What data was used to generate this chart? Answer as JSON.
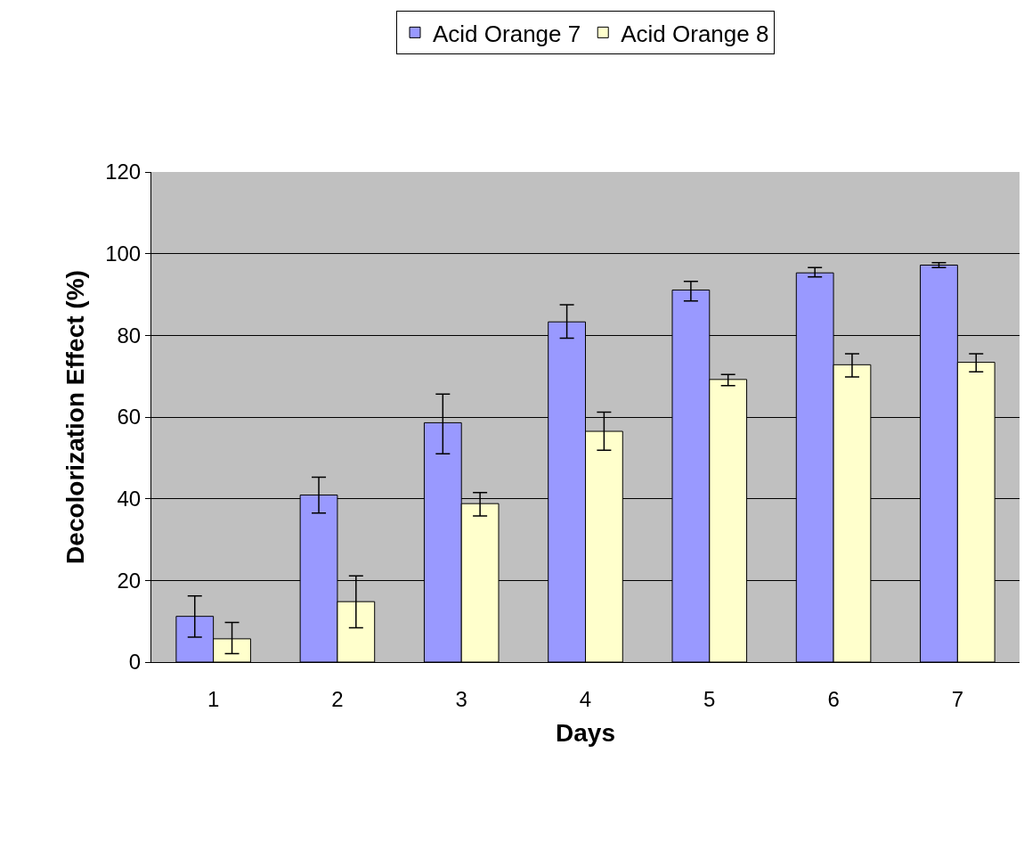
{
  "chart_data": {
    "type": "bar",
    "xlabel": "Days",
    "ylabel": "Decolorization Effect (%)",
    "categories": [
      "1",
      "2",
      "3",
      "4",
      "5",
      "6",
      "7"
    ],
    "series": [
      {
        "name": "Acid Orange 7",
        "color": "#9999ff",
        "values": [
          11.2,
          40.9,
          58.6,
          83.3,
          91.1,
          95.3,
          97.2
        ],
        "errors": [
          [
            6.1,
            16.2
          ],
          [
            36.5,
            45.3
          ],
          [
            51.0,
            65.6
          ],
          [
            79.3,
            87.5
          ],
          [
            88.4,
            93.2
          ],
          [
            94.3,
            96.6
          ],
          [
            96.6,
            97.8
          ]
        ]
      },
      {
        "name": "Acid Orange 8",
        "color": "#ffffcc",
        "values": [
          5.7,
          14.8,
          38.8,
          56.5,
          69.2,
          72.8,
          73.4
        ],
        "errors": [
          [
            2.1,
            9.7
          ],
          [
            8.4,
            21.1
          ],
          [
            35.8,
            41.5
          ],
          [
            51.9,
            61.2
          ],
          [
            67.7,
            70.4
          ],
          [
            69.8,
            75.5
          ],
          [
            71.1,
            75.5
          ]
        ]
      }
    ],
    "ylim": [
      0,
      120
    ],
    "yticks": [
      0,
      20,
      40,
      60,
      80,
      100,
      120
    ],
    "grid": "y",
    "legend": "top"
  }
}
